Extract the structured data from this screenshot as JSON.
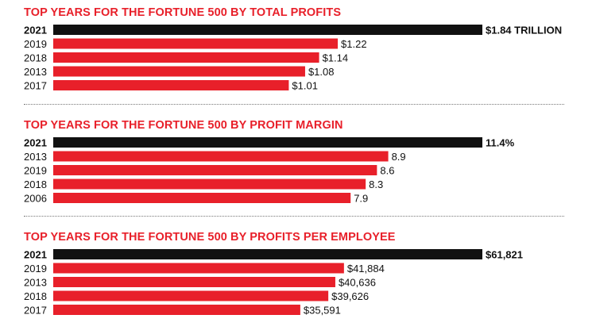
{
  "colors": {
    "highlight": "#111111",
    "bar": "#e8202a",
    "title": "#e8202a"
  },
  "chart_data": [
    {
      "type": "bar",
      "orientation": "horizontal",
      "title": "TOP YEARS FOR THE FORTUNE 500 BY TOTAL PROFITS",
      "categories": [
        "2021",
        "2019",
        "2018",
        "2013",
        "2017"
      ],
      "values": [
        1.84,
        1.22,
        1.14,
        1.08,
        1.01
      ],
      "value_labels": [
        "$1.84 TRILLION",
        "$1.22",
        "$1.14",
        "$1.08",
        "$1.01"
      ],
      "highlight_index": 0
    },
    {
      "type": "bar",
      "orientation": "horizontal",
      "title": "TOP YEARS FOR THE FORTUNE 500 BY PROFIT MARGIN",
      "categories": [
        "2021",
        "2013",
        "2019",
        "2018",
        "2006"
      ],
      "values": [
        11.4,
        8.9,
        8.6,
        8.3,
        7.9
      ],
      "value_labels": [
        "11.4%",
        "8.9",
        "8.6",
        "8.3",
        "7.9"
      ],
      "highlight_index": 0
    },
    {
      "type": "bar",
      "orientation": "horizontal",
      "title": "TOP YEARS FOR THE FORTUNE 500 BY PROFITS PER EMPLOYEE",
      "categories": [
        "2021",
        "2019",
        "2013",
        "2018",
        "2017"
      ],
      "values": [
        61821,
        41884,
        40636,
        39626,
        35591
      ],
      "value_labels": [
        "$61,821",
        "$41,884",
        "$40,636",
        "$39,626",
        "$35,591"
      ],
      "highlight_index": 0
    }
  ]
}
